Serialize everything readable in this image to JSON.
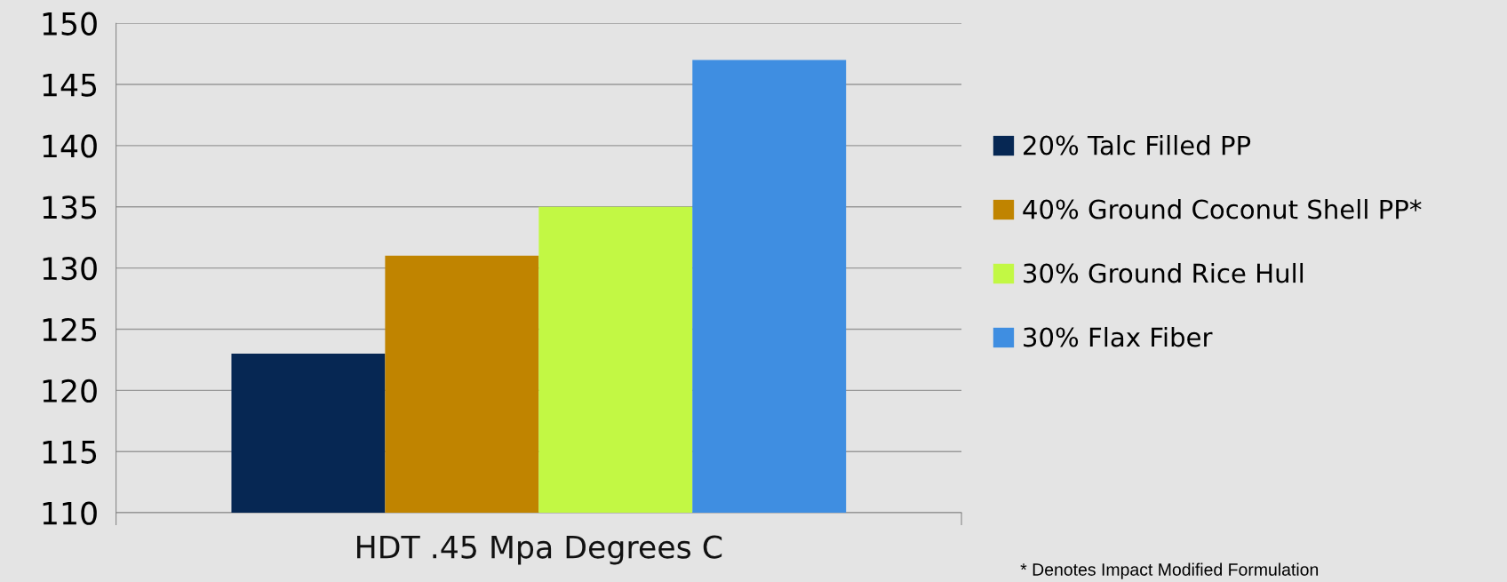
{
  "chart_data": {
    "type": "bar",
    "categories": [
      "HDT .45 Mpa Degrees C"
    ],
    "series": [
      {
        "name": "20% Talc Filled PP",
        "color": "#062753",
        "values": [
          123
        ]
      },
      {
        "name": "40% Ground Coconut Shell PP*",
        "color": "#c08400",
        "values": [
          131
        ]
      },
      {
        "name": "30% Ground Rice Hull",
        "color": "#c2f844",
        "values": [
          135
        ]
      },
      {
        "name": "30% Flax Fiber",
        "color": "#3f8ee1",
        "values": [
          147
        ]
      }
    ],
    "ylim": [
      110,
      150
    ],
    "yticks": [
      110,
      115,
      120,
      125,
      130,
      135,
      140,
      145,
      150
    ],
    "grid": "y",
    "legend": "right",
    "annotations": [
      "* Denotes Impact Modified Formulation"
    ]
  }
}
